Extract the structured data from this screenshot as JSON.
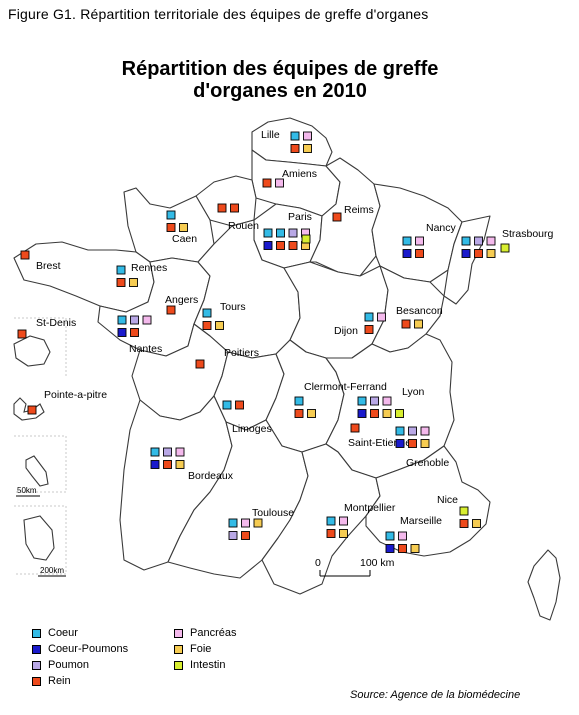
{
  "figure_caption": "Figure G1. Répartition territoriale des équipes de greffe d'organes",
  "title_line1": "Répartition des équipes de greffe",
  "title_line2": "d'organes en 2010",
  "colors": {
    "coeur": "#33bbe6",
    "coeur_poumons": "#1a1acc",
    "poumon": "#b9a8e6",
    "rein": "#ee4a1c",
    "pancreas": "#f4b9ec",
    "foie": "#f6cc52",
    "intestin": "#d8ee30",
    "region_fill": "#ffffff",
    "region_border": "#3a3a3a",
    "background": "#ffffff"
  },
  "legend": [
    {
      "key": "coeur",
      "label": "Coeur"
    },
    {
      "key": "coeur_poumons",
      "label": "Coeur-Poumons"
    },
    {
      "key": "poumon",
      "label": "Poumon"
    },
    {
      "key": "rein",
      "label": "Rein"
    },
    {
      "key": "pancreas",
      "label": "Pancréas"
    },
    {
      "key": "foie",
      "label": "Foie"
    },
    {
      "key": "intestin",
      "label": "Intestin"
    }
  ],
  "cities": [
    {
      "name": "Lille",
      "teams": [
        "coeur",
        "pancreas",
        "rein",
        "foie"
      ]
    },
    {
      "name": "Amiens",
      "teams": [
        "rein",
        "pancreas"
      ]
    },
    {
      "name": "Caen",
      "teams": [
        "coeur",
        "rein",
        "foie"
      ]
    },
    {
      "name": "Rouen",
      "teams": [
        "rein",
        "rein"
      ]
    },
    {
      "name": "Paris",
      "teams": [
        "coeur",
        "coeur",
        "poumon",
        "pancreas",
        "coeur_poumons",
        "rein",
        "rein",
        "foie",
        "intestin"
      ]
    },
    {
      "name": "Reims",
      "teams": [
        "rein"
      ]
    },
    {
      "name": "Nancy",
      "teams": [
        "coeur",
        "pancreas",
        "coeur_poumons",
        "rein"
      ]
    },
    {
      "name": "Strasbourg",
      "teams": [
        "coeur",
        "poumon",
        "pancreas",
        "coeur_poumons",
        "rein",
        "foie",
        "intestin"
      ]
    },
    {
      "name": "Brest",
      "teams": [
        "rein"
      ]
    },
    {
      "name": "Rennes",
      "teams": [
        "coeur",
        "rein",
        "foie"
      ]
    },
    {
      "name": "Angers",
      "teams": [
        "rein"
      ]
    },
    {
      "name": "Tours",
      "teams": [
        "coeur",
        "rein",
        "foie"
      ]
    },
    {
      "name": "Nantes",
      "teams": [
        "coeur",
        "poumon",
        "pancreas",
        "coeur_poumons",
        "rein"
      ]
    },
    {
      "name": "Poitiers",
      "teams": [
        "rein"
      ]
    },
    {
      "name": "Dijon",
      "teams": [
        "coeur",
        "pancreas",
        "rein"
      ]
    },
    {
      "name": "Besancon",
      "teams": [
        "rein",
        "foie"
      ]
    },
    {
      "name": "Clermont-Ferrand",
      "teams": [
        "coeur",
        "rein",
        "foie"
      ]
    },
    {
      "name": "Lyon",
      "teams": [
        "coeur",
        "poumon",
        "pancreas",
        "coeur_poumons",
        "rein",
        "foie",
        "intestin"
      ]
    },
    {
      "name": "Limoges",
      "teams": [
        "coeur",
        "rein"
      ]
    },
    {
      "name": "Saint-Etienne",
      "teams": [
        "rein"
      ]
    },
    {
      "name": "Grenoble",
      "teams": [
        "coeur",
        "poumon",
        "pancreas",
        "coeur_poumons",
        "rein",
        "foie"
      ]
    },
    {
      "name": "Bordeaux",
      "teams": [
        "coeur",
        "poumon",
        "pancreas",
        "coeur_poumons",
        "rein",
        "foie"
      ]
    },
    {
      "name": "Toulouse",
      "teams": [
        "coeur",
        "pancreas",
        "foie",
        "poumon",
        "rein"
      ]
    },
    {
      "name": "Montpellier",
      "teams": [
        "coeur",
        "pancreas",
        "rein",
        "foie"
      ]
    },
    {
      "name": "Marseille",
      "teams": [
        "coeur",
        "pancreas",
        "coeur_poumons",
        "rein",
        "foie"
      ]
    },
    {
      "name": "Nice",
      "teams": [
        "intestin",
        "rein",
        "foie"
      ]
    },
    {
      "name": "St-Denis",
      "teams": [
        "rein"
      ]
    },
    {
      "name": "Pointe-a-pitre",
      "teams": [
        "rein"
      ]
    }
  ],
  "scale_main": {
    "start": "0",
    "end": "100 km"
  },
  "scale_inset_small": "50km",
  "scale_inset_large": "200km",
  "source": "Source: Agence de la biomédecine"
}
